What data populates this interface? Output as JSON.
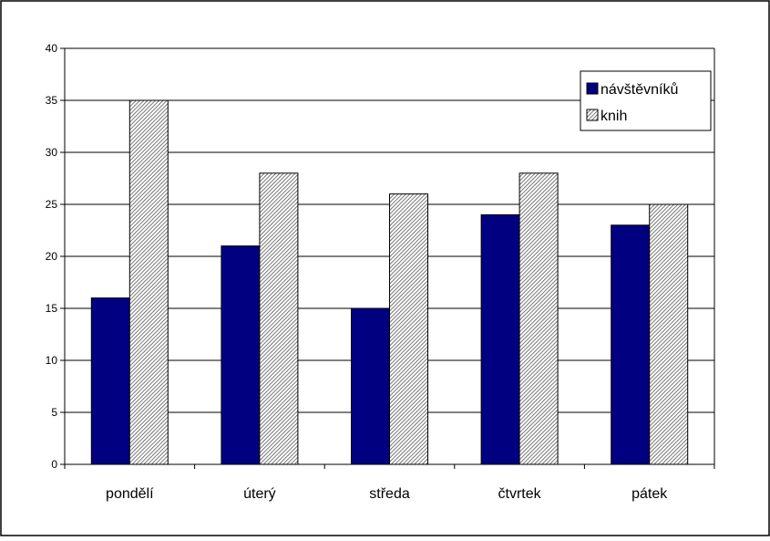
{
  "chart_data": {
    "type": "bar",
    "categories": [
      "pondělí",
      "úterý",
      "středa",
      "čtvrtek",
      "pátek"
    ],
    "series": [
      {
        "name": "návštěvníků",
        "values": [
          16,
          21,
          15,
          24,
          23
        ],
        "color": "#000080",
        "fill": "solid"
      },
      {
        "name": "knih",
        "values": [
          35,
          28,
          26,
          28,
          25
        ],
        "color": "#c0c0c0",
        "fill": "diagonal-hatch"
      }
    ],
    "ylim": [
      0,
      40
    ],
    "yticks": [
      0,
      5,
      10,
      15,
      20,
      25,
      30,
      35,
      40
    ],
    "title": "",
    "xlabel": "",
    "ylabel": "",
    "grid": "horizontal",
    "legend_position": "top-right"
  }
}
